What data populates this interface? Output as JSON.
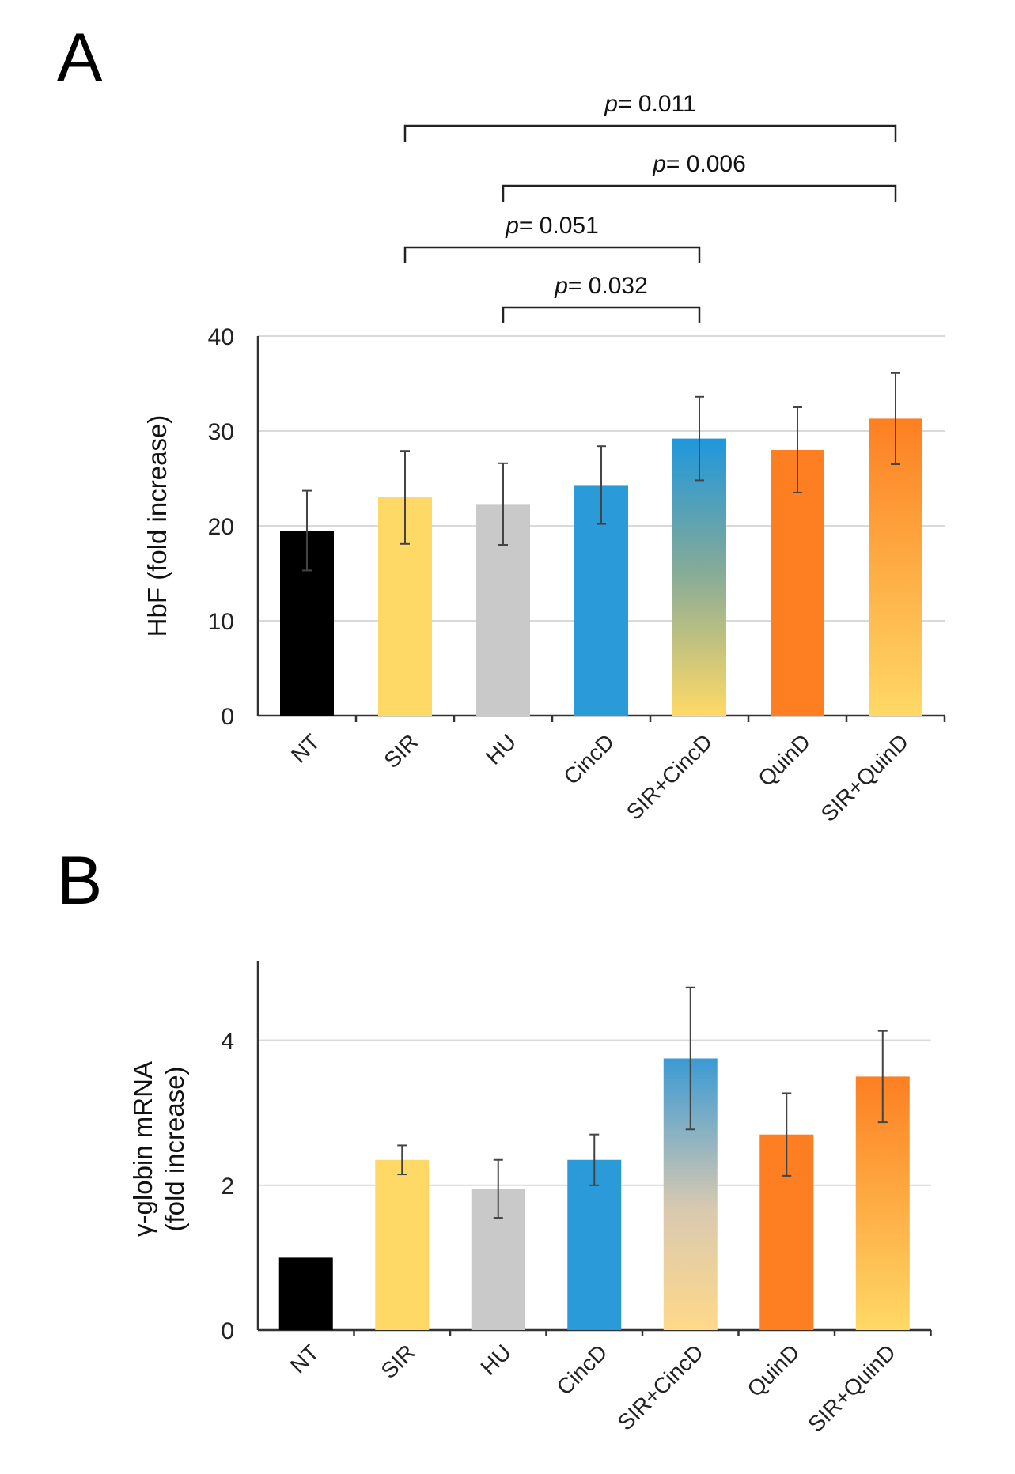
{
  "chart_data": [
    {
      "panel": "A",
      "type": "bar",
      "title": "",
      "xlabel": "",
      "ylabel": "HbF (fold increase)",
      "ylim": [
        0,
        40
      ],
      "yticks": [
        0,
        10,
        20,
        30,
        40
      ],
      "grid": true,
      "categories": [
        "NT",
        "SIR",
        "HU",
        "CincD",
        "SIR+CincD",
        "QuinD",
        "SIR+QuinD"
      ],
      "values": [
        19.5,
        23,
        22.3,
        24.3,
        29.2,
        28,
        31.3
      ],
      "errors": [
        4.2,
        4.9,
        4.3,
        4.1,
        4.4,
        4.5,
        4.8
      ],
      "colors": [
        "#000000",
        "#ffd966",
        "#c9c9c9",
        "#2a9bd8",
        "gradient-blue-yellow",
        "#fd7f22",
        "gradient-orange-yellow"
      ],
      "significance": [
        {
          "from": "SIR",
          "to": "SIR+QuinD",
          "label": "p= 0.011",
          "p": "p",
          "value": "= 0.011"
        },
        {
          "from": "HU",
          "to": "SIR+QuinD",
          "label": "p= 0.006",
          "p": "p",
          "value": "= 0.006"
        },
        {
          "from": "SIR",
          "to": "SIR+CincD",
          "label": "p= 0.051",
          "p": "p",
          "value": "= 0.051"
        },
        {
          "from": "HU",
          "to": "SIR+CincD",
          "label": "p= 0.032",
          "p": "p",
          "value": "= 0.032"
        }
      ]
    },
    {
      "panel": "B",
      "type": "bar",
      "title": "",
      "xlabel": "",
      "ylabel": "γ-globin mRNA",
      "ylabel2": "(fold increase)",
      "ylim": [
        0,
        5
      ],
      "yticks": [
        0,
        2,
        4
      ],
      "grid": true,
      "categories": [
        "NT",
        "SIR",
        "HU",
        "CincD",
        "SIR+CincD",
        "QuinD",
        "SIR+QuinD"
      ],
      "values": [
        1.0,
        2.35,
        1.95,
        2.35,
        3.75,
        2.7,
        3.5
      ],
      "errors": [
        0,
        0.2,
        0.4,
        0.35,
        0.98,
        0.57,
        0.63
      ],
      "colors": [
        "#000000",
        "#ffd966",
        "#c9c9c9",
        "#2a9bd8",
        "gradient-blue-peach",
        "#fd7f22",
        "gradient-orange-yellow"
      ]
    }
  ]
}
